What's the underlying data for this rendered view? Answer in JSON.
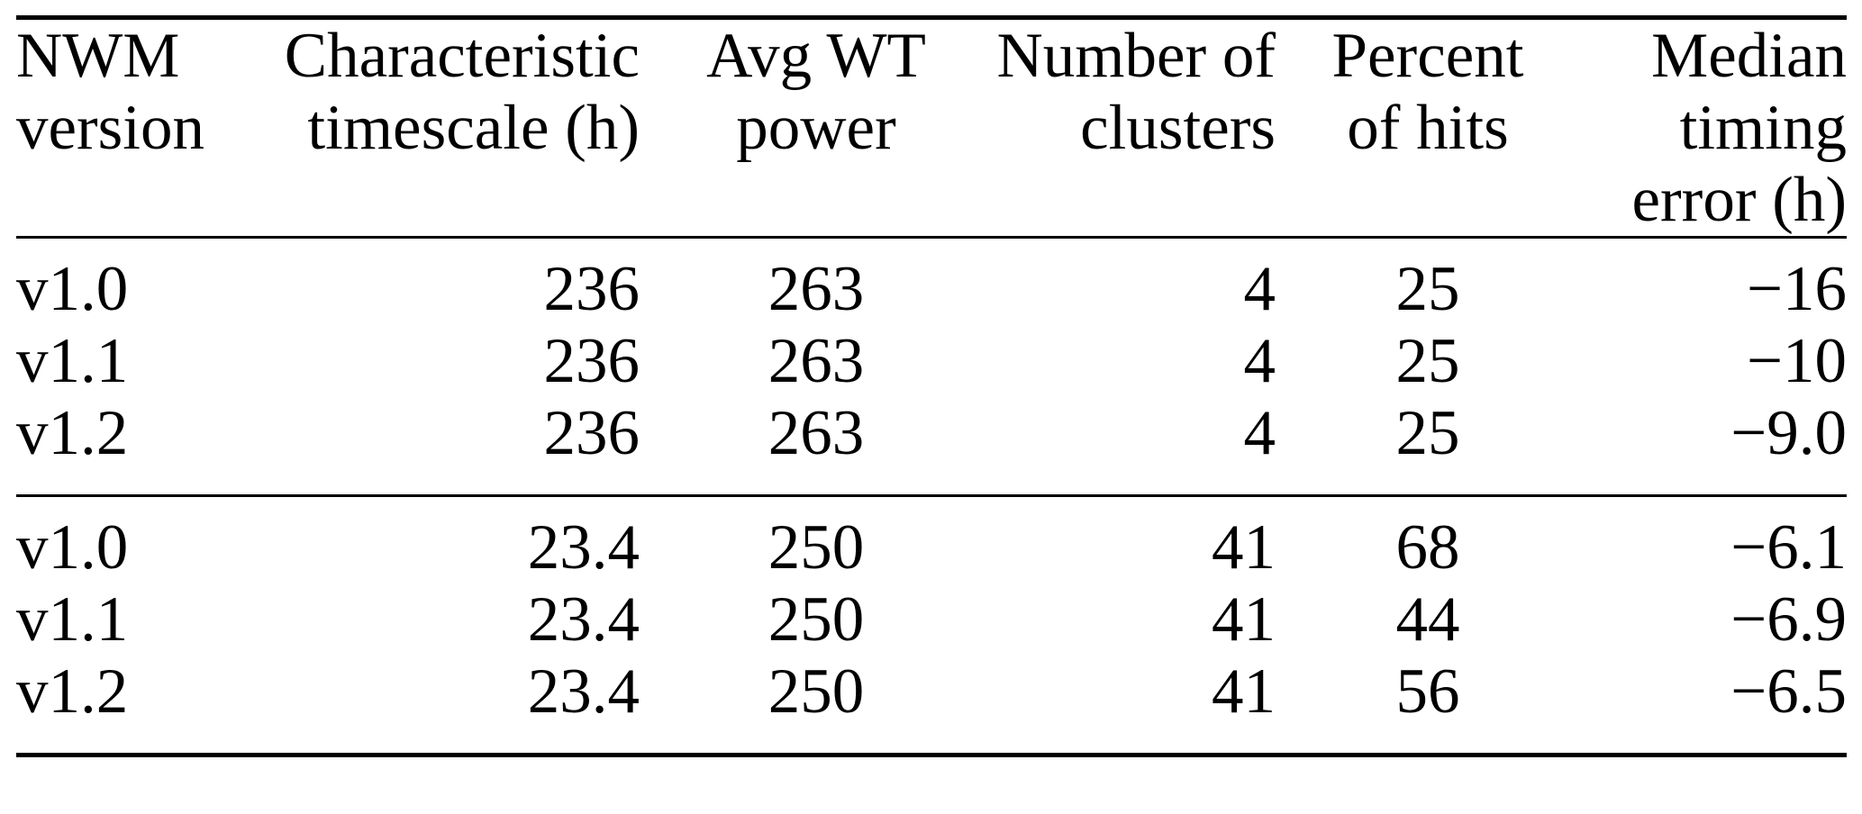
{
  "table": {
    "header": {
      "col1": {
        "lines": [
          "NWM",
          "version"
        ]
      },
      "col2": {
        "lines": [
          "Characteristic",
          "timescale (h)"
        ]
      },
      "col3": {
        "lines": [
          "Avg WT",
          "power"
        ]
      },
      "col4": {
        "lines": [
          "Number of",
          "clusters"
        ]
      },
      "col5": {
        "lines": [
          "Percent",
          "of hits"
        ]
      },
      "col6": {
        "lines": [
          "Median",
          "timing",
          "error (h)"
        ]
      }
    },
    "groups": [
      {
        "rows": [
          {
            "cells": [
              "v1.0",
              "236",
              "263",
              "4",
              "25",
              "−16"
            ]
          },
          {
            "cells": [
              "v1.1",
              "236",
              "263",
              "4",
              "25",
              "−10"
            ]
          },
          {
            "cells": [
              "v1.2",
              "236",
              "263",
              "4",
              "25",
              "−9.0"
            ]
          }
        ]
      },
      {
        "rows": [
          {
            "cells": [
              "v1.0",
              "23.4",
              "250",
              "41",
              "68",
              "−6.1"
            ]
          },
          {
            "cells": [
              "v1.1",
              "23.4",
              "250",
              "41",
              "44",
              "−6.9"
            ]
          },
          {
            "cells": [
              "v1.2",
              "23.4",
              "250",
              "41",
              "56",
              "−6.5"
            ]
          }
        ]
      }
    ],
    "colors": {
      "text": "#000000",
      "background": "#ffffff",
      "rule": "#000000"
    }
  }
}
